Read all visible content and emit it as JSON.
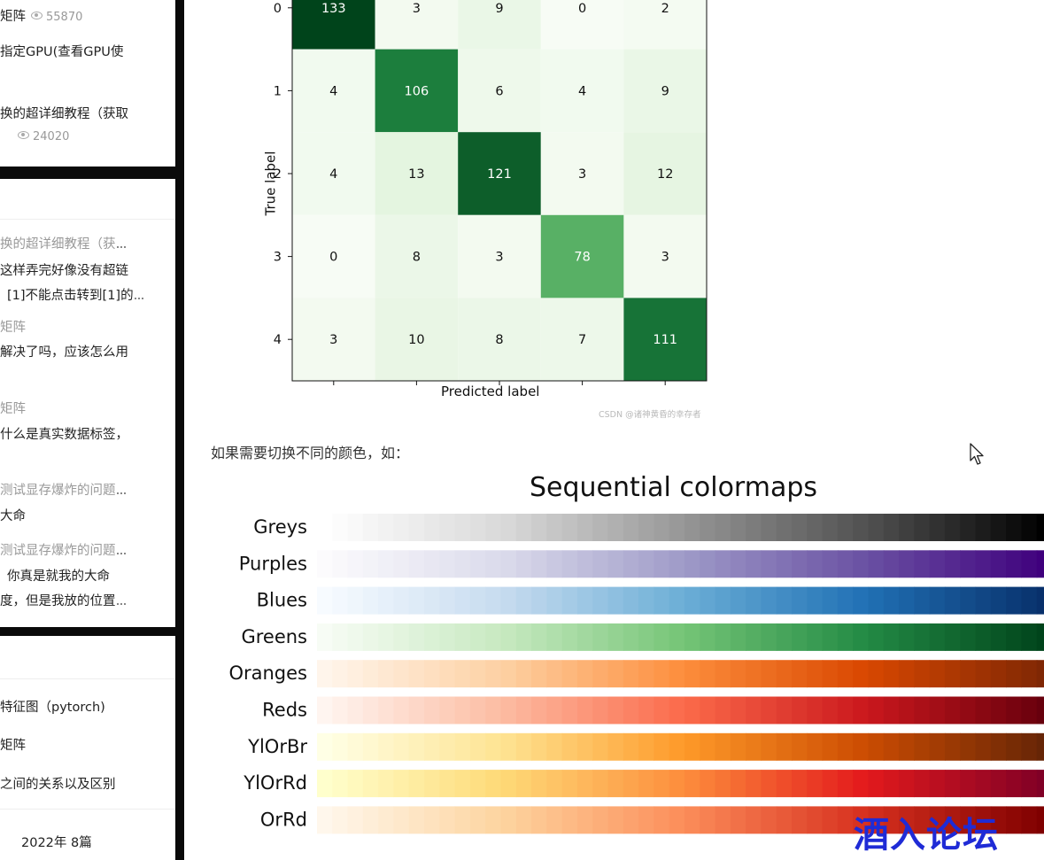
{
  "sidebar": {
    "card1": {
      "lines": [
        "矩阵",
        "指定GPU(查看GPU使",
        "换的超详细教程（获取"
      ],
      "views1": "55870",
      "views2": "24020"
    },
    "card2": {
      "lines": [
        "换的超详细教程（获",
        "这样弄完好像没有超链",
        "[1]不能点击转到[1]的",
        "矩阵",
        "解决了吗，应该怎么用",
        "矩阵",
        "什么是真实数据标签，",
        "测试显存爆炸的问题",
        "大命",
        "测试显存爆炸的问题",
        "你真是就我的大命",
        "度，但是我放的位置"
      ]
    },
    "card3": {
      "lines": [
        "特征图（pytorch)",
        "矩阵",
        "之间的关系以及区别"
      ],
      "archive": "2022年  8篇"
    }
  },
  "confusion_matrix": {
    "xlabel": "Predicted label",
    "ylabel": "True label",
    "row_labels": [
      "0",
      "1",
      "2",
      "3",
      "4"
    ],
    "max": 133,
    "cells": [
      [
        133,
        3,
        9,
        0,
        2
      ],
      [
        4,
        106,
        6,
        4,
        9
      ],
      [
        4,
        13,
        121,
        3,
        12
      ],
      [
        0,
        8,
        3,
        78,
        3
      ],
      [
        3,
        10,
        8,
        7,
        111
      ]
    ],
    "watermark": "CSDN @诸神黄昏的幸存者"
  },
  "paragraph": "如果需要切换不同的颜色，如：",
  "colormaps": {
    "title": "Sequential colormaps",
    "items": [
      {
        "name": "Greys",
        "stops": [
          "#ffffff",
          "#d9d9d9",
          "#969696",
          "#525252",
          "#000000"
        ]
      },
      {
        "name": "Purples",
        "stops": [
          "#fcfbfd",
          "#dadaeb",
          "#9e9ac8",
          "#6a51a3",
          "#3f007d"
        ]
      },
      {
        "name": "Blues",
        "stops": [
          "#f7fbff",
          "#c6dbef",
          "#6baed6",
          "#2171b5",
          "#08306b"
        ]
      },
      {
        "name": "Greens",
        "stops": [
          "#f7fcf5",
          "#c7e9c0",
          "#74c476",
          "#238b45",
          "#00441b"
        ]
      },
      {
        "name": "Oranges",
        "stops": [
          "#fff5eb",
          "#fdd0a2",
          "#fd8d3c",
          "#d94801",
          "#7f2704"
        ]
      },
      {
        "name": "Reds",
        "stops": [
          "#fff5f0",
          "#fcbba1",
          "#fb6a4a",
          "#cb181d",
          "#67000d"
        ]
      },
      {
        "name": "YlOrBr",
        "stops": [
          "#ffffe5",
          "#fee391",
          "#fe9929",
          "#cc4c02",
          "#662506"
        ]
      },
      {
        "name": "YlOrRd",
        "stops": [
          "#ffffcc",
          "#fed976",
          "#fd8d3c",
          "#e31a1c",
          "#800026"
        ]
      },
      {
        "name": "OrRd",
        "stops": [
          "#fff7ec",
          "#fdd49e",
          "#fc8d59",
          "#d7301f",
          "#7f0000"
        ]
      }
    ]
  },
  "forum_logo": "酒入论坛"
}
